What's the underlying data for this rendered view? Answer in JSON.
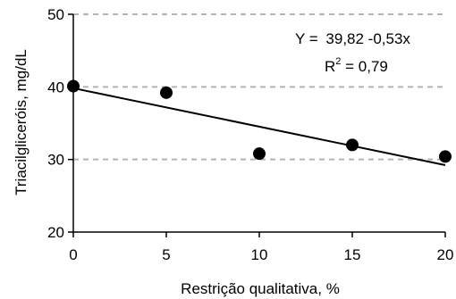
{
  "chart_data": {
    "type": "scatter",
    "xlabel": "Restrição qualitativa, %",
    "ylabel": "Triacilgliceróis, mg/dL",
    "xlim": [
      0,
      20
    ],
    "ylim": [
      20,
      50
    ],
    "x_ticks": [
      "0",
      "5",
      "10",
      "15",
      "20"
    ],
    "y_ticks": [
      "20",
      "30",
      "40",
      "50"
    ],
    "grid": "horizontal dashed",
    "points": [
      {
        "x": 0,
        "y": 40.1
      },
      {
        "x": 5,
        "y": 39.2
      },
      {
        "x": 10,
        "y": 30.8
      },
      {
        "x": 15,
        "y": 32.0
      },
      {
        "x": 20,
        "y": 30.4
      }
    ],
    "regression": {
      "intercept": 39.82,
      "slope": -0.53,
      "equation_prefix": "Y = ",
      "equation_value": "39,82 -0,53x",
      "r2_base": "R",
      "r2_exp": "2",
      "r2_value": " = 0,79"
    },
    "colors": {
      "points": "#000000",
      "grid": "#b3b3b3",
      "line": "#000000"
    }
  }
}
